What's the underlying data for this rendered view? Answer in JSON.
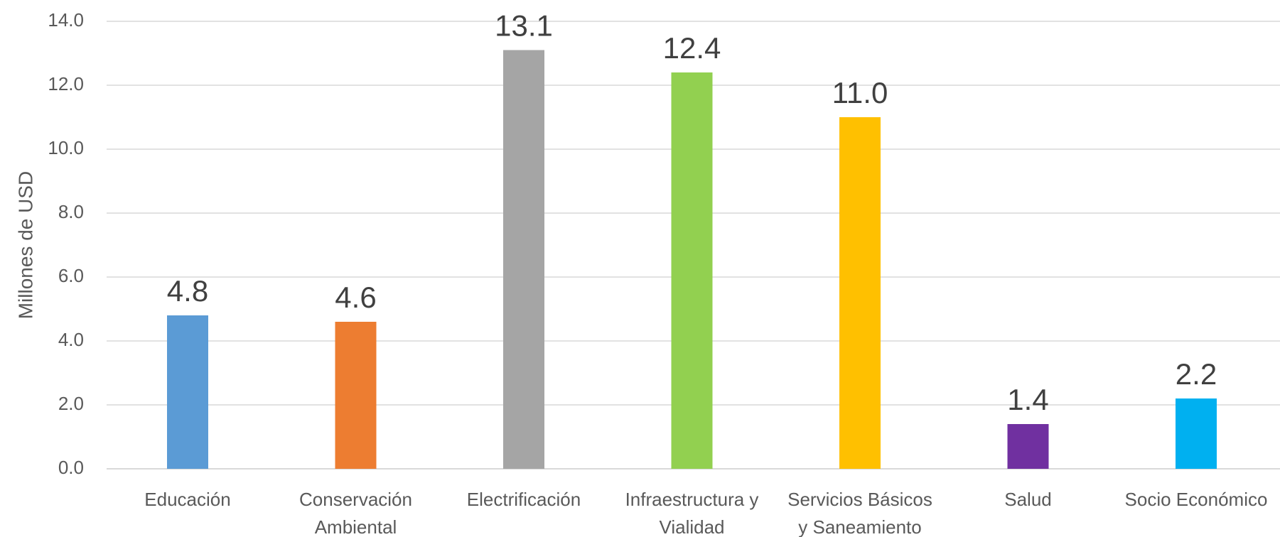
{
  "chart_data": {
    "type": "bar",
    "categories": [
      [
        "Educación"
      ],
      [
        "Conservación",
        "Ambiental"
      ],
      [
        "Electrificación"
      ],
      [
        "Infraestructura y",
        "Vialidad"
      ],
      [
        "Servicios Básicos",
        "y Saneamiento"
      ],
      [
        "Salud"
      ],
      [
        "Socio Económico"
      ]
    ],
    "values": [
      4.8,
      4.6,
      13.1,
      12.4,
      11.0,
      1.4,
      2.2
    ],
    "data_labels": [
      "4.8",
      "4.6",
      "13.1",
      "12.4",
      "11.0",
      "1.4",
      "2.2"
    ],
    "colors": [
      "#5b9bd5",
      "#ed7d31",
      "#a5a5a5",
      "#92d050",
      "#ffc000",
      "#7030a0",
      "#00b0f0"
    ],
    "ylabel": "Millones de USD",
    "xlabel": "",
    "title": "",
    "ylim": [
      0,
      14
    ],
    "yticks": [
      "0.0",
      "2.0",
      "4.0",
      "6.0",
      "8.0",
      "10.0",
      "12.0",
      "14.0"
    ],
    "grid": true,
    "legend": "none"
  }
}
